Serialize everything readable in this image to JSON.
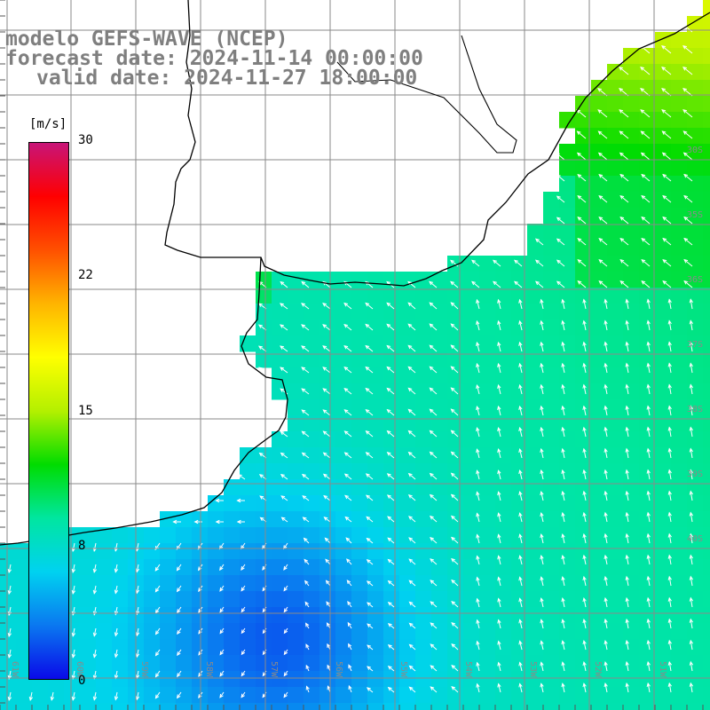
{
  "title": {
    "line1": "modelo GEFS-WAVE (NCEP)",
    "line2": "forecast date: 2024-11-14 00:00:00",
    "line3": "valid date: 2024-11-27 18:00:00"
  },
  "colorbar": {
    "unit": "[m/s]",
    "ticks": [
      "30",
      "22",
      "15",
      "8",
      "0"
    ],
    "range": [
      0,
      30
    ],
    "colors": [
      "#0a0ae8",
      "#0a78f0",
      "#00d2f0",
      "#00e6a0",
      "#00dc00",
      "#b4f000",
      "#ffff00",
      "#ffb400",
      "#ff5000",
      "#ff0000",
      "#c81478"
    ]
  },
  "lat_labels": [
    "30S",
    "35S",
    "36S",
    "37S",
    "38S",
    "39S",
    "40S"
  ],
  "lon_labels": [
    "61W",
    "60W",
    "59W",
    "58W",
    "57W",
    "56W",
    "55W",
    "54W",
    "53W",
    "52W",
    "51W"
  ],
  "colors": {
    "land": "#ffffff",
    "grid": "#8a8a8a",
    "coast": "#000000",
    "arrow": "#ffffff"
  }
}
